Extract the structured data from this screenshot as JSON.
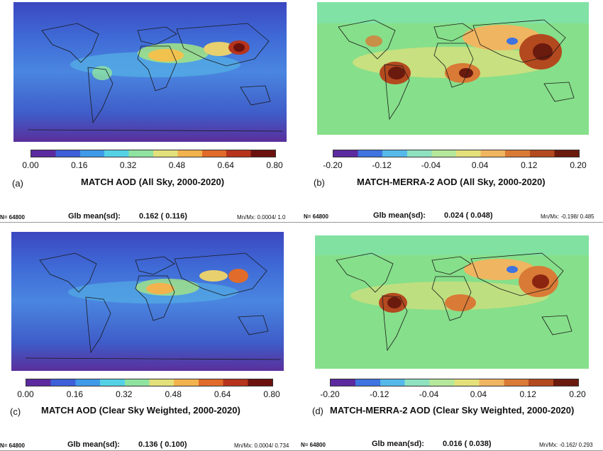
{
  "panels": [
    {
      "letter": "(a)",
      "title": "MATCH AOD (All Sky, 2000-2020)",
      "scale": "seq",
      "colorbar_ticks": [
        "0.00",
        "0.16",
        "0.32",
        "0.48",
        "0.64",
        "0.80"
      ],
      "n_label": "N= 64800",
      "glb_label": "Glb mean(sd):",
      "glb_value": "0.162 ( 0.116)",
      "mnmx": "Mn/Mx: 0.0004/ 1.0"
    },
    {
      "letter": "(b)",
      "title": "MATCH-MERRA-2 AOD (All Sky, 2000-2020)",
      "scale": "div",
      "colorbar_ticks": [
        "-0.20",
        "-0.12",
        "-0.04",
        "0.04",
        "0.12",
        "0.20"
      ],
      "n_label": "N= 64800",
      "glb_label": "Glb mean(sd):",
      "glb_value": "0.024 ( 0.048)",
      "mnmx": "Mn/Mx: -0.198/ 0.485"
    },
    {
      "letter": "(c)",
      "title": "MATCH AOD (Clear Sky Weighted, 2000-2020)",
      "scale": "seq",
      "colorbar_ticks": [
        "0.00",
        "0.16",
        "0.32",
        "0.48",
        "0.64",
        "0.80"
      ],
      "n_label": "N= 64800",
      "glb_label": "Glb mean(sd):",
      "glb_value": "0.136 ( 0.100)",
      "mnmx": "Mn/Mx: 0.0004/ 0.734"
    },
    {
      "letter": "(d)",
      "title": "MATCH-MERRA-2 AOD (Clear Sky Weighted, 2000-2020)",
      "scale": "div",
      "colorbar_ticks": [
        "-0.20",
        "-0.12",
        "-0.04",
        "0.04",
        "0.12",
        "0.20"
      ],
      "n_label": "N= 64800",
      "glb_label": "Glb mean(sd):",
      "glb_value": "0.016 ( 0.038)",
      "mnmx": "Mn/Mx: -0.162/ 0.293"
    }
  ],
  "colors": {
    "seq_scale": [
      "#5b2a9e",
      "#3d5fd8",
      "#3f9ae8",
      "#55d1e6",
      "#8fe3a0",
      "#e2e07a",
      "#f2b24e",
      "#e06b2a",
      "#b6341c",
      "#6b120e"
    ],
    "div_scale": [
      "#5b2a9e",
      "#3e73e0",
      "#56b9ea",
      "#8fe2c0",
      "#b5e89a",
      "#e4e07a",
      "#f0b560",
      "#d97a36",
      "#b3491f",
      "#6b1a0e"
    ],
    "ocean_seq": "#3f5fcf",
    "ocean_div": "#86df8a",
    "coastline": "#1a1a1a"
  }
}
